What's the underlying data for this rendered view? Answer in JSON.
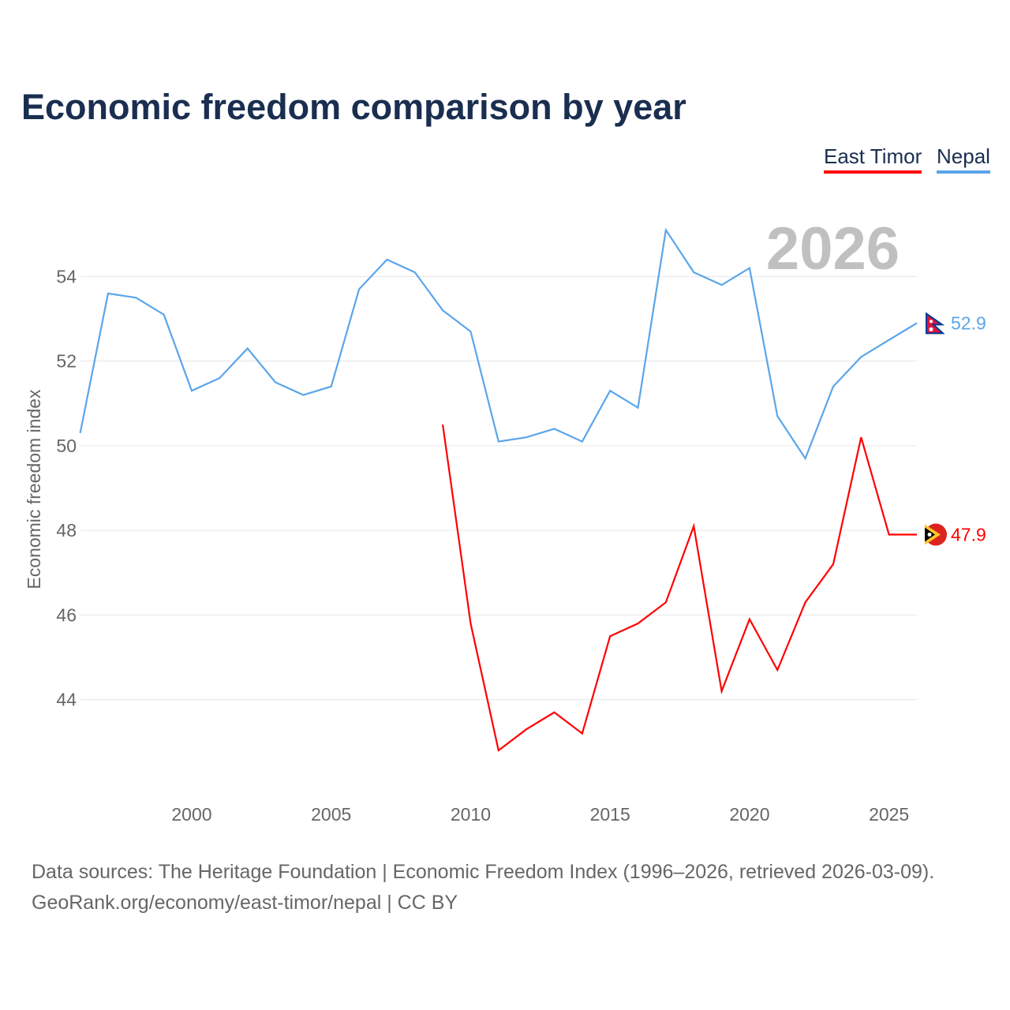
{
  "chart_data": {
    "type": "line",
    "title": "Economic freedom comparison by year",
    "xlabel": "",
    "ylabel": "Economic freedom index",
    "xlim": [
      1996,
      2026
    ],
    "ylim": [
      41.7,
      55.5
    ],
    "x_ticks": [
      2000,
      2005,
      2010,
      2015,
      2020,
      2025
    ],
    "y_ticks": [
      44,
      46,
      48,
      50,
      52,
      54
    ],
    "grid": true,
    "legend_position": "top-right",
    "year_label": "2026",
    "series": [
      {
        "name": "East Timor",
        "color": "#ff0000",
        "end_label": "47.9",
        "x": [
          2009,
          2010,
          2011,
          2012,
          2013,
          2014,
          2015,
          2016,
          2017,
          2018,
          2019,
          2020,
          2021,
          2022,
          2023,
          2024,
          2025,
          2026
        ],
        "values": [
          50.5,
          45.8,
          42.8,
          43.3,
          43.7,
          43.2,
          45.5,
          45.8,
          46.3,
          48.1,
          44.2,
          45.9,
          44.7,
          46.3,
          47.2,
          50.2,
          47.9,
          47.9
        ]
      },
      {
        "name": "Nepal",
        "color": "#5ba5ea",
        "end_label": "52.9",
        "x": [
          1996,
          1997,
          1998,
          1999,
          2000,
          2001,
          2002,
          2003,
          2004,
          2005,
          2006,
          2007,
          2008,
          2009,
          2010,
          2011,
          2012,
          2013,
          2014,
          2015,
          2016,
          2017,
          2018,
          2019,
          2020,
          2021,
          2022,
          2023,
          2024,
          2025,
          2026
        ],
        "values": [
          50.3,
          53.6,
          53.5,
          53.1,
          51.3,
          51.6,
          52.3,
          51.5,
          51.2,
          51.4,
          53.7,
          54.4,
          54.1,
          53.2,
          52.7,
          50.1,
          50.2,
          50.4,
          50.1,
          51.3,
          50.9,
          55.1,
          54.1,
          53.8,
          54.2,
          50.7,
          49.7,
          51.4,
          52.1,
          52.5,
          52.9
        ]
      }
    ]
  },
  "source": {
    "line1": "Data sources: The Heritage Foundation | Economic Freedom Index (1996–2026, retrieved 2026-03-09).",
    "line2": "GeoRank.org/economy/east-timor/nepal | CC BY"
  }
}
